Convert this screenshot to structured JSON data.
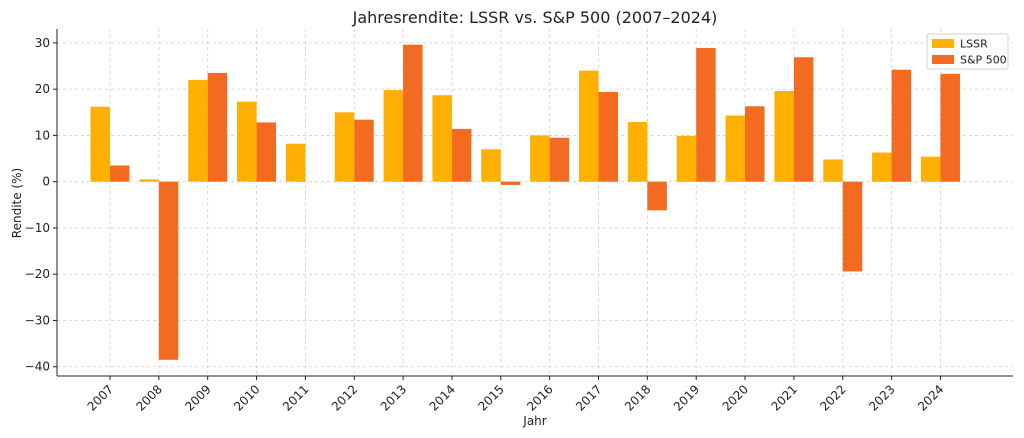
{
  "chart_data": {
    "type": "bar",
    "title": "Jahresrendite: LSSR vs. S&P 500 (2007–2024)",
    "xlabel": "Jahr",
    "ylabel": "Rendite (%)",
    "ylim": [
      -42,
      33
    ],
    "yticks": [
      -40,
      -30,
      -20,
      -10,
      0,
      10,
      20,
      30
    ],
    "grid": true,
    "legend_position": "top-right",
    "categories": [
      "2007",
      "2008",
      "2009",
      "2010",
      "2011",
      "2012",
      "2013",
      "2014",
      "2015",
      "2016",
      "2017",
      "2018",
      "2019",
      "2020",
      "2021",
      "2022",
      "2023",
      "2024"
    ],
    "series": [
      {
        "name": "LSSR",
        "color": "#FFB000",
        "values": [
          16.2,
          0.5,
          22.0,
          17.3,
          8.2,
          15.0,
          19.8,
          18.7,
          7.0,
          10.0,
          24.0,
          12.9,
          9.9,
          14.3,
          19.6,
          4.8,
          6.3,
          5.4
        ]
      },
      {
        "name": "S&P 500",
        "color": "#F26B21",
        "values": [
          3.5,
          -38.5,
          23.5,
          12.8,
          0.0,
          13.4,
          29.6,
          11.4,
          -0.7,
          9.5,
          19.4,
          -6.2,
          28.9,
          16.3,
          26.9,
          -19.4,
          24.2,
          23.3
        ]
      }
    ]
  }
}
